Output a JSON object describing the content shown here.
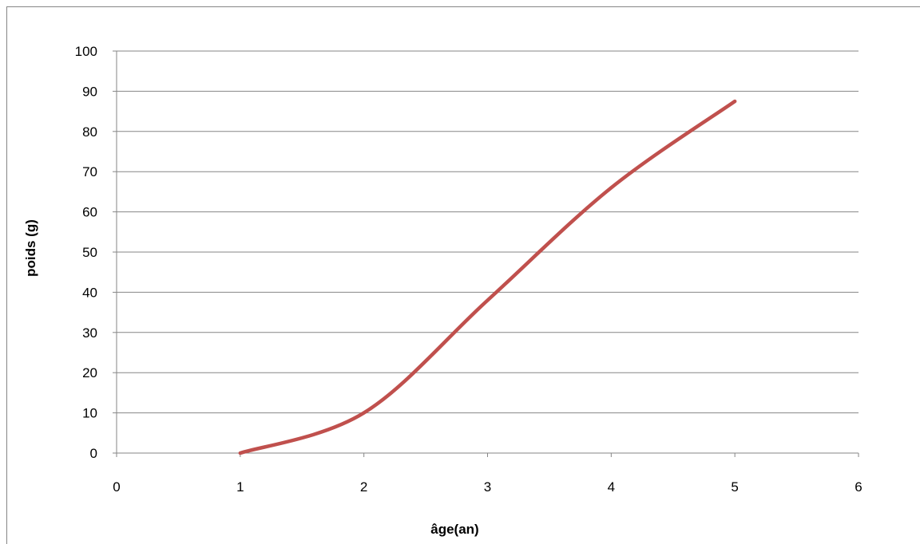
{
  "chart_data": {
    "type": "line",
    "title": "",
    "xlabel": "âge(an)",
    "ylabel": "poids (g)",
    "xlim": [
      0,
      6
    ],
    "ylim": [
      0,
      100
    ],
    "x_ticks": [
      "0",
      "1",
      "2",
      "3",
      "4",
      "5",
      "6"
    ],
    "y_ticks": [
      "0",
      "10",
      "20",
      "30",
      "40",
      "50",
      "60",
      "70",
      "80",
      "90",
      "100"
    ],
    "grid": "horizontal",
    "legend": "none",
    "smooth": true,
    "series": [
      {
        "color": "#C0504D",
        "x": [
          1,
          2,
          3,
          4,
          5
        ],
        "y": [
          0,
          10,
          38,
          66,
          87.5
        ]
      }
    ]
  }
}
